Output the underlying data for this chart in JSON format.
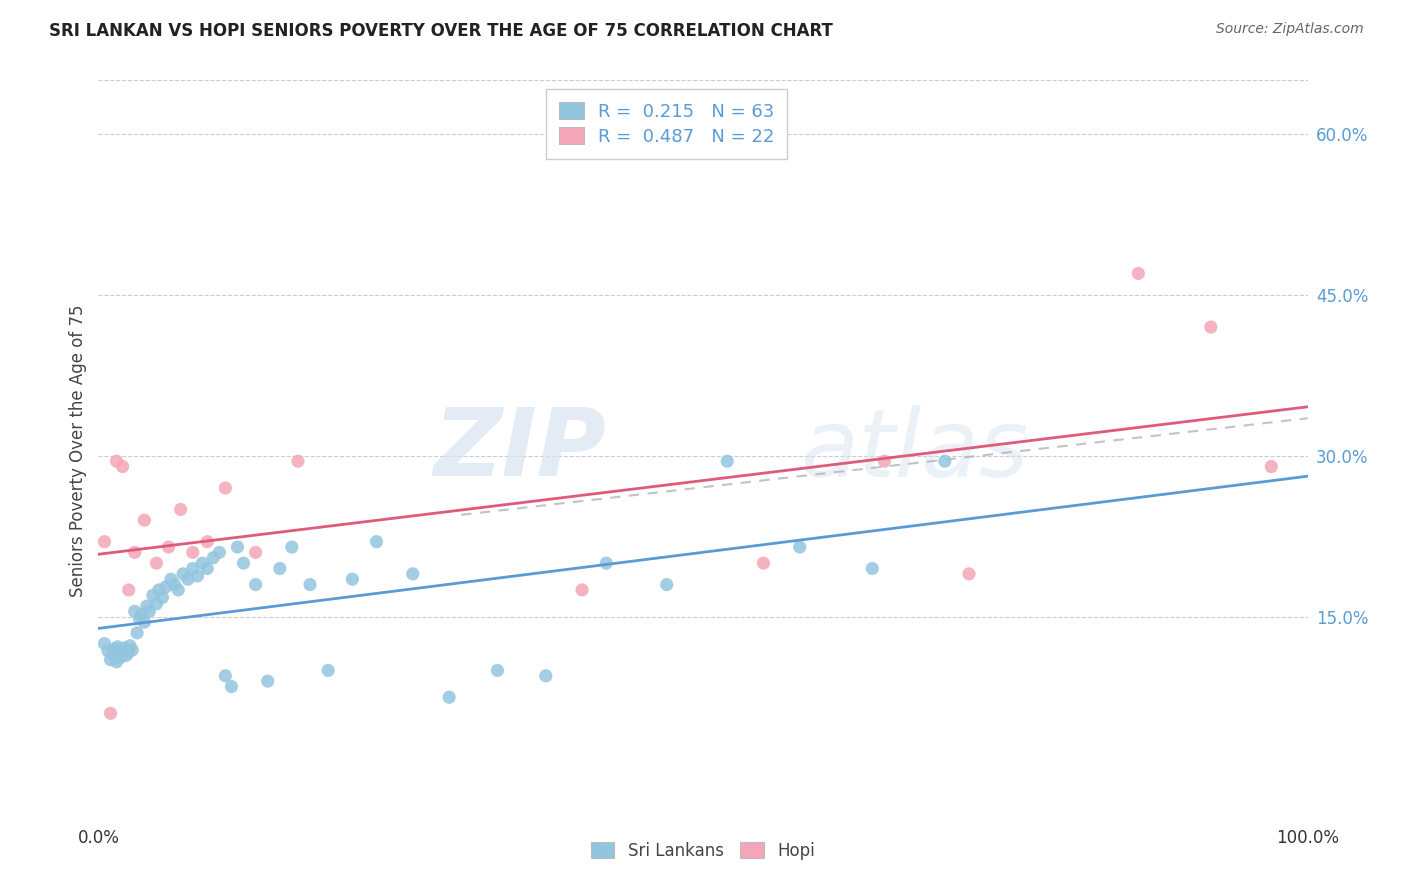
{
  "title": "SRI LANKAN VS HOPI SENIORS POVERTY OVER THE AGE OF 75 CORRELATION CHART",
  "source": "Source: ZipAtlas.com",
  "ylabel": "Seniors Poverty Over the Age of 75",
  "xlabel": "",
  "xlim": [
    0,
    1.0
  ],
  "ylim": [
    -0.04,
    0.65
  ],
  "ytick_positions": [
    0.15,
    0.3,
    0.45,
    0.6
  ],
  "ytick_labels": [
    "15.0%",
    "30.0%",
    "45.0%",
    "60.0%"
  ],
  "sri_lankan_R": 0.215,
  "sri_lankan_N": 63,
  "hopi_R": 0.487,
  "hopi_N": 22,
  "sri_lankan_color": "#92c5de",
  "hopi_color": "#f4a6b8",
  "trend_sri_color": "#5b9bd5",
  "trend_hopi_color": "#e05a7a",
  "background_color": "#ffffff",
  "watermark_zip": "ZIP",
  "watermark_atlas": "atlas",
  "sri_lankan_x": [
    0.005,
    0.008,
    0.01,
    0.012,
    0.013,
    0.014,
    0.015,
    0.016,
    0.017,
    0.018,
    0.019,
    0.02,
    0.021,
    0.022,
    0.023,
    0.025,
    0.026,
    0.028,
    0.03,
    0.032,
    0.034,
    0.036,
    0.038,
    0.04,
    0.042,
    0.045,
    0.048,
    0.05,
    0.053,
    0.056,
    0.06,
    0.063,
    0.066,
    0.07,
    0.074,
    0.078,
    0.082,
    0.086,
    0.09,
    0.095,
    0.1,
    0.105,
    0.11,
    0.115,
    0.12,
    0.13,
    0.14,
    0.15,
    0.16,
    0.175,
    0.19,
    0.21,
    0.23,
    0.26,
    0.29,
    0.33,
    0.37,
    0.42,
    0.47,
    0.52,
    0.58,
    0.64,
    0.7
  ],
  "sri_lankan_y": [
    0.125,
    0.118,
    0.11,
    0.115,
    0.12,
    0.113,
    0.108,
    0.122,
    0.116,
    0.112,
    0.119,
    0.115,
    0.118,
    0.121,
    0.114,
    0.117,
    0.123,
    0.119,
    0.155,
    0.135,
    0.148,
    0.152,
    0.145,
    0.16,
    0.155,
    0.17,
    0.162,
    0.175,
    0.168,
    0.178,
    0.185,
    0.18,
    0.175,
    0.19,
    0.185,
    0.195,
    0.188,
    0.2,
    0.195,
    0.205,
    0.21,
    0.095,
    0.085,
    0.215,
    0.2,
    0.18,
    0.09,
    0.195,
    0.215,
    0.18,
    0.1,
    0.185,
    0.22,
    0.19,
    0.075,
    0.1,
    0.095,
    0.2,
    0.18,
    0.295,
    0.215,
    0.195,
    0.295
  ],
  "hopi_x": [
    0.005,
    0.01,
    0.015,
    0.02,
    0.025,
    0.03,
    0.038,
    0.048,
    0.058,
    0.068,
    0.078,
    0.09,
    0.105,
    0.13,
    0.165,
    0.4,
    0.55,
    0.65,
    0.72,
    0.86,
    0.92,
    0.97
  ],
  "hopi_y": [
    0.22,
    0.06,
    0.295,
    0.29,
    0.175,
    0.21,
    0.24,
    0.2,
    0.215,
    0.25,
    0.21,
    0.22,
    0.27,
    0.21,
    0.295,
    0.175,
    0.2,
    0.295,
    0.19,
    0.47,
    0.42,
    0.29
  ]
}
